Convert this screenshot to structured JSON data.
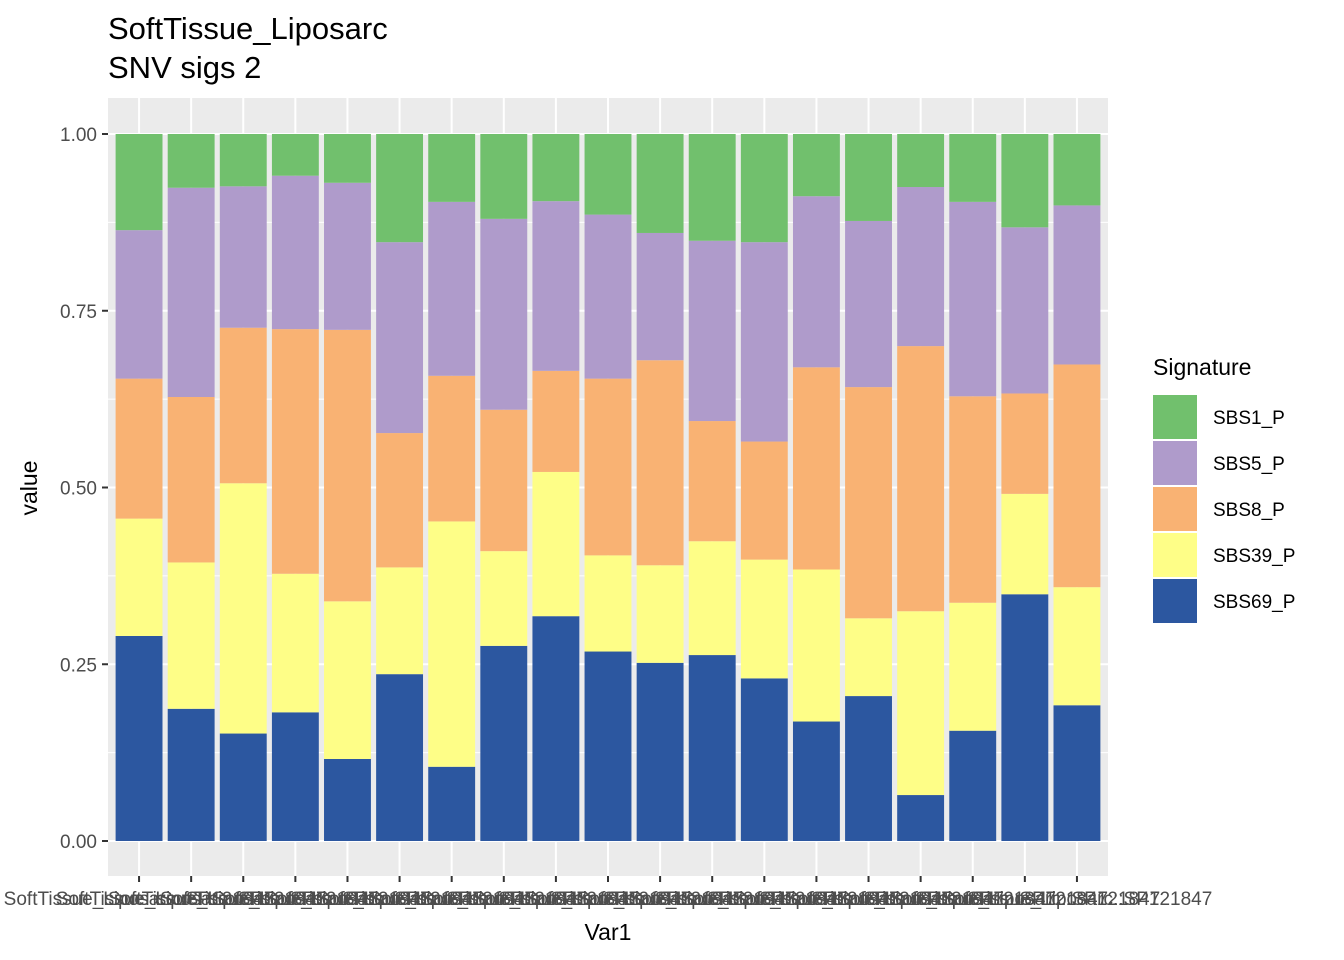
{
  "chart_data": {
    "type": "bar",
    "stacked": true,
    "title": "SoftTissue_Liposarc",
    "subtitle": "SNV sigs 2",
    "xlabel": "Var1",
    "ylabel": "value",
    "ylim": [
      0,
      1
    ],
    "yticks": [
      "0.00",
      "0.25",
      "0.50",
      "0.75",
      "1.00"
    ],
    "ytick_values": [
      0,
      0.25,
      0.5,
      0.75,
      1
    ],
    "grid": true,
    "legend_position": "right",
    "legend_title": "Signature",
    "x_tick_labels_overplotted": true,
    "x_tick_text": "SoftTissue_Liposarc::SP121847",
    "n_bars": 19,
    "series": [
      {
        "name": "SBS69_P",
        "color": "#2c57a0",
        "values": [
          0.29,
          0.187,
          0.152,
          0.182,
          0.116,
          0.236,
          0.105,
          0.276,
          0.318,
          0.268,
          0.252,
          0.263,
          0.23,
          0.169,
          0.205,
          0.065,
          0.156,
          0.349,
          0.192
        ]
      },
      {
        "name": "SBS39_P",
        "color": "#fefe87",
        "values": [
          0.166,
          0.207,
          0.354,
          0.196,
          0.223,
          0.151,
          0.347,
          0.134,
          0.204,
          0.136,
          0.138,
          0.161,
          0.168,
          0.215,
          0.11,
          0.26,
          0.181,
          0.142,
          0.167
        ]
      },
      {
        "name": "SBS8_P",
        "color": "#f9b273",
        "values": [
          0.198,
          0.234,
          0.22,
          0.346,
          0.384,
          0.19,
          0.206,
          0.2,
          0.143,
          0.25,
          0.29,
          0.17,
          0.167,
          0.286,
          0.327,
          0.375,
          0.292,
          0.142,
          0.315
        ]
      },
      {
        "name": "SBS5_P",
        "color": "#af9bcb",
        "values": [
          0.21,
          0.296,
          0.2,
          0.217,
          0.208,
          0.27,
          0.246,
          0.27,
          0.24,
          0.232,
          0.18,
          0.255,
          0.282,
          0.242,
          0.235,
          0.225,
          0.275,
          0.235,
          0.225
        ]
      },
      {
        "name": "SBS1_P",
        "color": "#71c06d",
        "values": [
          0.136,
          0.076,
          0.074,
          0.059,
          0.069,
          0.153,
          0.096,
          0.12,
          0.095,
          0.114,
          0.14,
          0.151,
          0.153,
          0.088,
          0.123,
          0.075,
          0.096,
          0.132,
          0.101
        ]
      }
    ]
  }
}
